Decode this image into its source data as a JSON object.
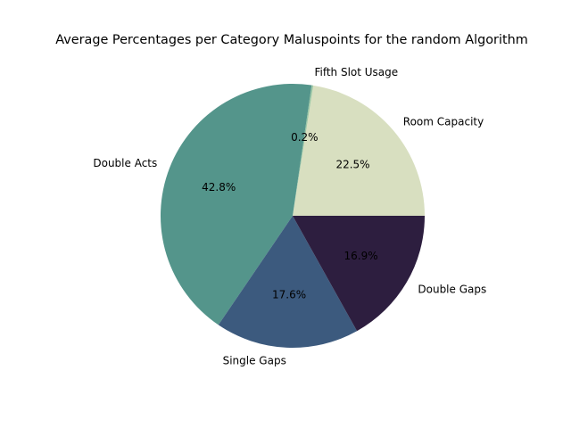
{
  "chart_data": {
    "type": "pie",
    "title": "Average Percentages per Category Maluspoints for the random Algorithm",
    "start_angle_deg": 0,
    "direction": "counterclockwise",
    "slices": [
      {
        "label": "Room Capacity",
        "value": 22.5,
        "pct_label": "22.5%",
        "color": "#d8dfc0"
      },
      {
        "label": "Fifth Slot Usage",
        "value": 0.2,
        "pct_label": "0.2%",
        "color": "#9cc7a4"
      },
      {
        "label": "Double Acts",
        "value": 42.8,
        "pct_label": "42.8%",
        "color": "#54958b"
      },
      {
        "label": "Single Gaps",
        "value": 17.6,
        "pct_label": "17.6%",
        "color": "#3c5a7e"
      },
      {
        "label": "Double Gaps",
        "value": 16.9,
        "pct_label": "16.9%",
        "color": "#2d1e3f"
      }
    ]
  }
}
